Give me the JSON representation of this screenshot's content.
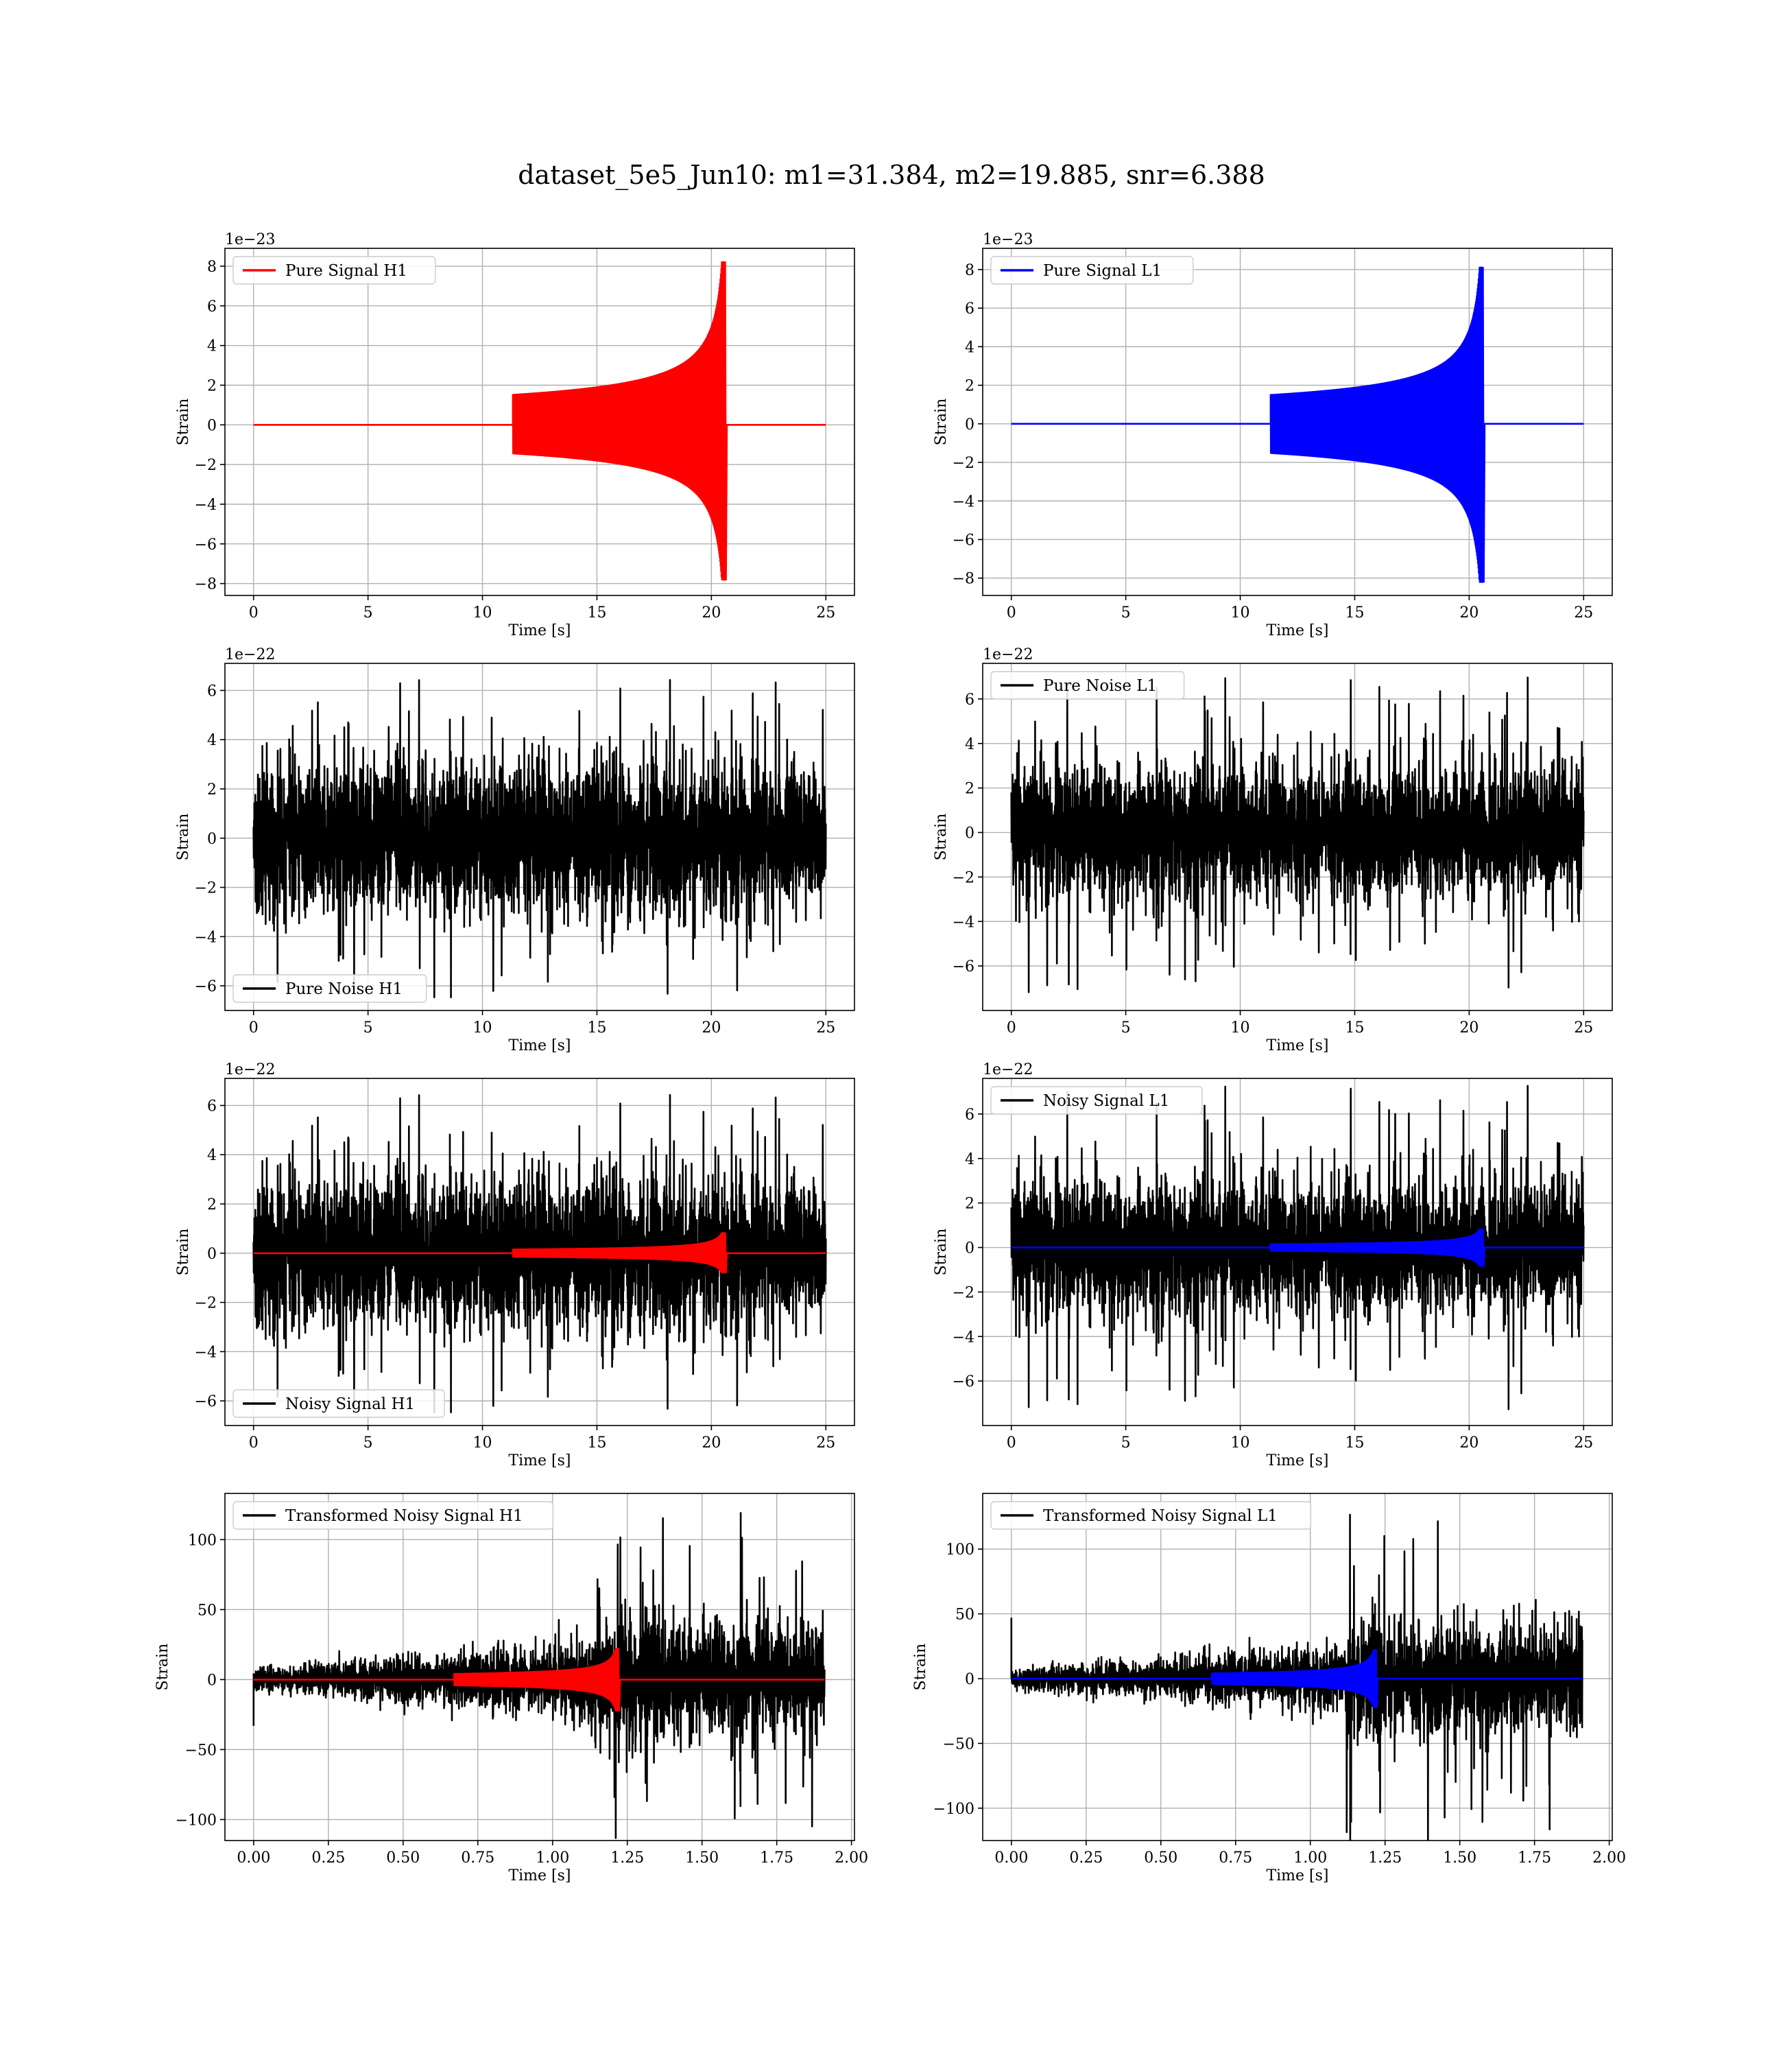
{
  "figure": {
    "title": "dataset_5e5_Jun10: m1=31.384, m2=19.885, snr=6.388"
  },
  "colors": {
    "h1_signal": "#ff0000",
    "l1_signal": "#0000ff",
    "noise": "#000000",
    "grid": "#b0b0b0"
  },
  "chart_data": [
    {
      "id": "pure-signal-h1",
      "type": "line",
      "xlabel": "Time [s]",
      "ylabel": "Strain",
      "offset_text": "1e−23",
      "xlim": [
        -1.25,
        26.25
      ],
      "ylim": [
        -8.6,
        8.9
      ],
      "xticks": [
        0,
        5,
        10,
        15,
        20,
        25
      ],
      "yticks": [
        -8,
        -6,
        -4,
        -2,
        0,
        2,
        4,
        6,
        8
      ],
      "xtick_labels": [
        "0",
        "5",
        "10",
        "15",
        "20",
        "25"
      ],
      "ytick_labels": [
        "−8",
        "−6",
        "−4",
        "−2",
        "0",
        "2",
        "4",
        "6",
        "8"
      ],
      "legend": {
        "placement": "upper-left",
        "entries": [
          {
            "name": "Pure Signal H1",
            "color": "#ff0000"
          }
        ]
      },
      "series": [
        {
          "name": "Pure Signal H1",
          "color": "#ff0000",
          "kind": "chirp",
          "duration": 25,
          "merger": 20.6,
          "peak_up": 8.2,
          "peak_down": -7.8
        }
      ]
    },
    {
      "id": "pure-signal-l1",
      "type": "line",
      "xlabel": "Time [s]",
      "ylabel": "Strain",
      "offset_text": "1e−23",
      "xlim": [
        -1.25,
        26.25
      ],
      "ylim": [
        -8.9,
        9.1
      ],
      "xticks": [
        0,
        5,
        10,
        15,
        20,
        25
      ],
      "yticks": [
        -8,
        -6,
        -4,
        -2,
        0,
        2,
        4,
        6,
        8
      ],
      "xtick_labels": [
        "0",
        "5",
        "10",
        "15",
        "20",
        "25"
      ],
      "ytick_labels": [
        "−8",
        "−6",
        "−4",
        "−2",
        "0",
        "2",
        "4",
        "6",
        "8"
      ],
      "legend": {
        "placement": "upper-left",
        "entries": [
          {
            "name": "Pure Signal L1",
            "color": "#0000ff"
          }
        ]
      },
      "series": [
        {
          "name": "Pure Signal L1",
          "color": "#0000ff",
          "kind": "chirp",
          "duration": 25,
          "merger": 20.6,
          "peak_up": 8.1,
          "peak_down": -8.2
        }
      ]
    },
    {
      "id": "pure-noise-h1",
      "type": "line",
      "xlabel": "Time [s]",
      "ylabel": "Strain",
      "offset_text": "1e−22",
      "xlim": [
        -1.25,
        26.25
      ],
      "ylim": [
        -7.0,
        7.1
      ],
      "xticks": [
        0,
        5,
        10,
        15,
        20,
        25
      ],
      "yticks": [
        -6,
        -4,
        -2,
        0,
        2,
        4,
        6
      ],
      "xtick_labels": [
        "0",
        "5",
        "10",
        "15",
        "20",
        "25"
      ],
      "ytick_labels": [
        "−6",
        "−4",
        "−2",
        "0",
        "2",
        "4",
        "6"
      ],
      "legend": {
        "placement": "lower-left",
        "entries": [
          {
            "name": "Pure Noise H1",
            "color": "#000000"
          }
        ]
      },
      "series": [
        {
          "name": "Pure Noise H1",
          "color": "#000000",
          "kind": "noise",
          "duration": 25,
          "band": 3.6,
          "max": 6.6,
          "min": -6.5,
          "seed": 11
        }
      ]
    },
    {
      "id": "pure-noise-l1",
      "type": "line",
      "xlabel": "Time [s]",
      "ylabel": "Strain",
      "offset_text": "1e−22",
      "xlim": [
        -1.25,
        26.25
      ],
      "ylim": [
        -8.0,
        7.6
      ],
      "xticks": [
        0,
        5,
        10,
        15,
        20,
        25
      ],
      "yticks": [
        -6,
        -4,
        -2,
        0,
        2,
        4,
        6
      ],
      "xtick_labels": [
        "0",
        "5",
        "10",
        "15",
        "20",
        "25"
      ],
      "ytick_labels": [
        "−6",
        "−4",
        "−2",
        "0",
        "2",
        "4",
        "6"
      ],
      "legend": {
        "placement": "upper-left",
        "entries": [
          {
            "name": "Pure Noise L1",
            "color": "#000000"
          }
        ]
      },
      "series": [
        {
          "name": "Pure Noise L1",
          "color": "#000000",
          "kind": "noise",
          "duration": 25,
          "band": 3.6,
          "max": 7.0,
          "min": -7.2,
          "seed": 23
        }
      ]
    },
    {
      "id": "noisy-signal-h1",
      "type": "line",
      "xlabel": "Time [s]",
      "ylabel": "Strain",
      "offset_text": "1e−22",
      "xlim": [
        -1.25,
        26.25
      ],
      "ylim": [
        -7.0,
        7.1
      ],
      "xticks": [
        0,
        5,
        10,
        15,
        20,
        25
      ],
      "yticks": [
        -6,
        -4,
        -2,
        0,
        2,
        4,
        6
      ],
      "xtick_labels": [
        "0",
        "5",
        "10",
        "15",
        "20",
        "25"
      ],
      "ytick_labels": [
        "−6",
        "−4",
        "−2",
        "0",
        "2",
        "4",
        "6"
      ],
      "legend": {
        "placement": "lower-left",
        "entries": [
          {
            "name": "Noisy Signal H1",
            "color": "#000000"
          }
        ]
      },
      "series": [
        {
          "name": "Noisy Signal H1",
          "color": "#000000",
          "kind": "noise",
          "duration": 25,
          "band": 3.6,
          "max": 6.6,
          "min": -6.5,
          "seed": 11
        },
        {
          "name": "",
          "color": "#ff0000",
          "kind": "chirp",
          "duration": 25,
          "merger": 20.6,
          "peak_up": 0.82,
          "peak_down": -0.78
        }
      ]
    },
    {
      "id": "noisy-signal-l1",
      "type": "line",
      "xlabel": "Time [s]",
      "ylabel": "Strain",
      "offset_text": "1e−22",
      "xlim": [
        -1.25,
        26.25
      ],
      "ylim": [
        -8.0,
        7.6
      ],
      "xticks": [
        0,
        5,
        10,
        15,
        20,
        25
      ],
      "yticks": [
        -6,
        -4,
        -2,
        0,
        2,
        4,
        6
      ],
      "xtick_labels": [
        "0",
        "5",
        "10",
        "15",
        "20",
        "25"
      ],
      "ytick_labels": [
        "−6",
        "−4",
        "−2",
        "0",
        "2",
        "4",
        "6"
      ],
      "legend": {
        "placement": "upper-left",
        "entries": [
          {
            "name": "Noisy Signal L1",
            "color": "#000000"
          }
        ]
      },
      "series": [
        {
          "name": "Noisy Signal L1",
          "color": "#000000",
          "kind": "noise",
          "duration": 25,
          "band": 3.6,
          "max": 7.3,
          "min": -7.2,
          "seed": 23
        },
        {
          "name": "",
          "color": "#0000ff",
          "kind": "chirp",
          "duration": 25,
          "merger": 20.6,
          "peak_up": 0.81,
          "peak_down": -0.82
        }
      ]
    },
    {
      "id": "transformed-noisy-signal-h1",
      "type": "line",
      "xlabel": "Time [s]",
      "ylabel": "Strain",
      "offset_text": "",
      "xlim": [
        -0.096,
        2.01
      ],
      "ylim": [
        -115,
        133
      ],
      "xticks": [
        0,
        0.25,
        0.5,
        0.75,
        1.0,
        1.25,
        1.5,
        1.75,
        2.0
      ],
      "yticks": [
        -100,
        -50,
        0,
        50,
        100
      ],
      "xtick_labels": [
        "0.00",
        "0.25",
        "0.50",
        "0.75",
        "1.00",
        "1.25",
        "1.50",
        "1.75",
        "2.00"
      ],
      "ytick_labels": [
        "−100",
        "−50",
        "0",
        "50",
        "100"
      ],
      "legend": {
        "placement": "upper-left",
        "entries": [
          {
            "name": "Transformed Noisy Signal H1",
            "color": "#000000"
          }
        ]
      },
      "series": [
        {
          "name": "Transformed Noisy Signal H1",
          "color": "#000000",
          "kind": "whitened",
          "duration": 1.91,
          "jump": 1.12,
          "max": 120,
          "min": -105,
          "seed": 37
        },
        {
          "name": "",
          "color": "#ff0000",
          "kind": "chirp",
          "duration": 1.91,
          "merger": 1.22,
          "peak_up": 22,
          "peak_down": -22
        }
      ]
    },
    {
      "id": "transformed-noisy-signal-l1",
      "type": "line",
      "xlabel": "Time [s]",
      "ylabel": "Strain",
      "offset_text": "",
      "xlim": [
        -0.096,
        2.01
      ],
      "ylim": [
        -125,
        143
      ],
      "xticks": [
        0,
        0.25,
        0.5,
        0.75,
        1.0,
        1.25,
        1.5,
        1.75,
        2.0
      ],
      "yticks": [
        -100,
        -50,
        0,
        50,
        100
      ],
      "xtick_labels": [
        "0.00",
        "0.25",
        "0.50",
        "0.75",
        "1.00",
        "1.25",
        "1.50",
        "1.75",
        "2.00"
      ],
      "ytick_labels": [
        "−100",
        "−50",
        "0",
        "50",
        "100"
      ],
      "legend": {
        "placement": "upper-left",
        "entries": [
          {
            "name": "Transformed Noisy Signal L1",
            "color": "#000000"
          }
        ]
      },
      "series": [
        {
          "name": "Transformed Noisy Signal L1",
          "color": "#000000",
          "kind": "whitened",
          "duration": 1.91,
          "jump": 1.12,
          "max": 133,
          "min": -108,
          "seed": 41
        },
        {
          "name": "",
          "color": "#0000ff",
          "kind": "chirp",
          "duration": 1.91,
          "merger": 1.22,
          "peak_up": 22,
          "peak_down": -22
        }
      ]
    }
  ]
}
